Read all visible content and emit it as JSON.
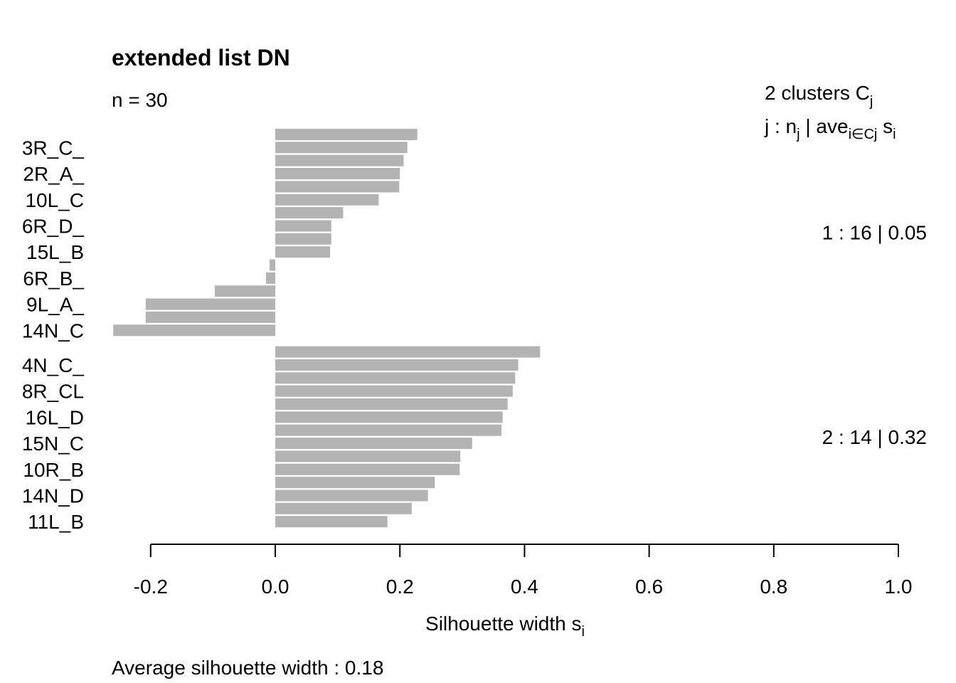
{
  "chart_data": {
    "type": "bar",
    "orientation": "horizontal",
    "title": "extended list DN",
    "subtitle": "n = 30",
    "xlabel": "Silhouette width s",
    "xlabel_sub": "i",
    "xlim": [
      -0.26,
      1.0
    ],
    "xticks": [
      "-0.2",
      "0.0",
      "0.2",
      "0.4",
      "0.6",
      "0.8",
      "1.0"
    ],
    "bar_color": "#b3b3b3",
    "legend": {
      "header1": "2  clusters  C",
      "header1_sub": "j",
      "header2_a": "j :  n",
      "header2_sub_a": "j",
      "header2_b": " | ave",
      "header2_sub_b": "i∈Cj",
      "header2_c": "  s",
      "header2_sub_c": "i"
    },
    "clusters": [
      {
        "label": "1 :   16  |  0.05",
        "values": [
          0.228,
          0.212,
          0.206,
          0.2,
          0.199,
          0.166,
          0.109,
          0.09,
          0.09,
          0.088,
          -0.009,
          -0.015,
          -0.097,
          -0.208,
          -0.208,
          -0.26
        ]
      },
      {
        "label": "2 :   14  |  0.32",
        "values": [
          0.425,
          0.39,
          0.385,
          0.381,
          0.373,
          0.365,
          0.363,
          0.316,
          0.297,
          0.296,
          0.256,
          0.245,
          0.219,
          0.18
        ]
      }
    ],
    "row_labels": [
      "3R_C_",
      "2R_A_",
      "10L_C",
      "6R_D_",
      "15L_B",
      "6R_B_",
      "9L_A_",
      "14N_C",
      "4N_C_",
      "8R_CL",
      "16L_D",
      "15N_C",
      "10R_B",
      "14N_D",
      "11L_B"
    ],
    "footer": "Average silhouette width :  0.18"
  }
}
